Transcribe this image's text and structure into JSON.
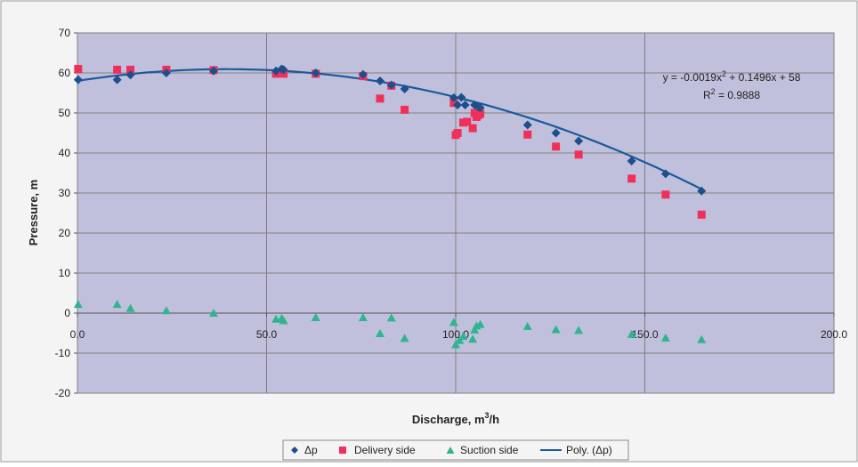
{
  "chart_data": {
    "type": "scatter",
    "xlabel": "Discharge, m",
    "xlabel_sup": "3",
    "xlabel_suffix": "/h",
    "ylabel": "Pressure, m",
    "xlim": [
      0,
      200
    ],
    "ylim": [
      -20,
      70
    ],
    "x_ticks": [
      {
        "value": 0,
        "label": "0.0"
      },
      {
        "value": 50,
        "label": "50.0"
      },
      {
        "value": 100,
        "label": "100.0"
      },
      {
        "value": 150,
        "label": "150.0"
      },
      {
        "value": 200,
        "label": "200.0"
      }
    ],
    "y_ticks": [
      {
        "value": -20,
        "label": "-20"
      },
      {
        "value": -10,
        "label": "-10"
      },
      {
        "value": 0,
        "label": "0"
      },
      {
        "value": 10,
        "label": "10"
      },
      {
        "value": 20,
        "label": "20"
      },
      {
        "value": 30,
        "label": "30"
      },
      {
        "value": 40,
        "label": "40"
      },
      {
        "value": 50,
        "label": "50"
      },
      {
        "value": 60,
        "label": "60"
      },
      {
        "value": 70,
        "label": "70"
      }
    ],
    "grid": {
      "horizontal": true,
      "vertical": true
    },
    "legend_position": "bottom",
    "colors": {
      "plot_background": "#c0c0dc",
      "chart_background": "#f4f4f4",
      "gridline": "#7f7f7f",
      "dp": "#1c4f8c",
      "delivery": "#f0305a",
      "suction": "#2eb58e",
      "trend": "#1a5a9c"
    },
    "series": [
      {
        "name": "Δp",
        "marker": "diamond",
        "points": [
          [
            0.2,
            58.3
          ],
          [
            10.5,
            58.3
          ],
          [
            14,
            59.5
          ],
          [
            23.5,
            60.0
          ],
          [
            36,
            60.5
          ],
          [
            52.5,
            60.5
          ],
          [
            54,
            61.0
          ],
          [
            54.5,
            60.8
          ],
          [
            63,
            60.0
          ],
          [
            75.5,
            59.6
          ],
          [
            80,
            58.0
          ],
          [
            83,
            57.0
          ],
          [
            86.5,
            56.0
          ],
          [
            99.5,
            53.8
          ],
          [
            100.5,
            52.0
          ],
          [
            101.5,
            53.9
          ],
          [
            102.5,
            52.0
          ],
          [
            105,
            52.0
          ],
          [
            106,
            51.5
          ],
          [
            106.5,
            51.3
          ],
          [
            119,
            47.0
          ],
          [
            126.5,
            45.0
          ],
          [
            132.5,
            43.0
          ],
          [
            146.5,
            38.0
          ],
          [
            155.5,
            34.8
          ],
          [
            165,
            30.5
          ]
        ]
      },
      {
        "name": "Delivery side",
        "marker": "square",
        "points": [
          [
            0.2,
            61.0
          ],
          [
            10.5,
            60.8
          ],
          [
            14,
            60.8
          ],
          [
            23.5,
            60.8
          ],
          [
            36,
            60.7
          ],
          [
            52.5,
            59.8
          ],
          [
            54.5,
            59.8
          ],
          [
            63,
            59.8
          ],
          [
            75.5,
            59.2
          ],
          [
            80,
            53.6
          ],
          [
            83,
            56.8
          ],
          [
            86.5,
            50.8
          ],
          [
            99.5,
            52.5
          ],
          [
            100,
            44.5
          ],
          [
            100.5,
            45.0
          ],
          [
            102,
            47.6
          ],
          [
            103,
            47.8
          ],
          [
            104.5,
            46.2
          ],
          [
            105,
            50.0
          ],
          [
            105.5,
            49.0
          ],
          [
            106,
            49.5
          ],
          [
            106.5,
            49.8
          ],
          [
            119,
            44.6
          ],
          [
            126.5,
            41.6
          ],
          [
            132.5,
            39.6
          ],
          [
            146.5,
            33.6
          ],
          [
            155.5,
            29.6
          ],
          [
            165,
            24.6
          ]
        ]
      },
      {
        "name": "Suction side",
        "marker": "triangle",
        "points": [
          [
            0.2,
            2.2
          ],
          [
            10.5,
            2.2
          ],
          [
            14,
            1.2
          ],
          [
            23.5,
            0.6
          ],
          [
            36,
            0.0
          ],
          [
            52.5,
            -1.5
          ],
          [
            54,
            -1.3
          ],
          [
            54.5,
            -1.9
          ],
          [
            63,
            -1.1
          ],
          [
            75.5,
            -1.1
          ],
          [
            80,
            -5.1
          ],
          [
            83,
            -1.2
          ],
          [
            86.5,
            -6.3
          ],
          [
            99.5,
            -2.3
          ],
          [
            100,
            -7.9
          ],
          [
            101,
            -6.8
          ],
          [
            102,
            -5.8
          ],
          [
            104.5,
            -6.5
          ],
          [
            105,
            -4.2
          ],
          [
            105.5,
            -3.2
          ],
          [
            106.5,
            -2.8
          ],
          [
            119,
            -3.3
          ],
          [
            126.5,
            -4.1
          ],
          [
            132.5,
            -4.3
          ],
          [
            146.5,
            -5.3
          ],
          [
            155.5,
            -6.2
          ],
          [
            165,
            -6.6
          ]
        ]
      }
    ],
    "trendline": {
      "name": "Poly. (Δp)",
      "type": "polynomial",
      "order": 2,
      "coefficients": {
        "a": -0.0019,
        "b": 0.1496,
        "c": 58
      },
      "x_range": [
        0,
        165
      ]
    },
    "annotations": {
      "equation_prefix": "y = -0.0019x",
      "equation_sup": "2",
      "equation_suffix": " + 0.1496x + 58",
      "r2_prefix": "R",
      "r2_sup": "2",
      "r2_suffix": " = 0.9888"
    }
  }
}
